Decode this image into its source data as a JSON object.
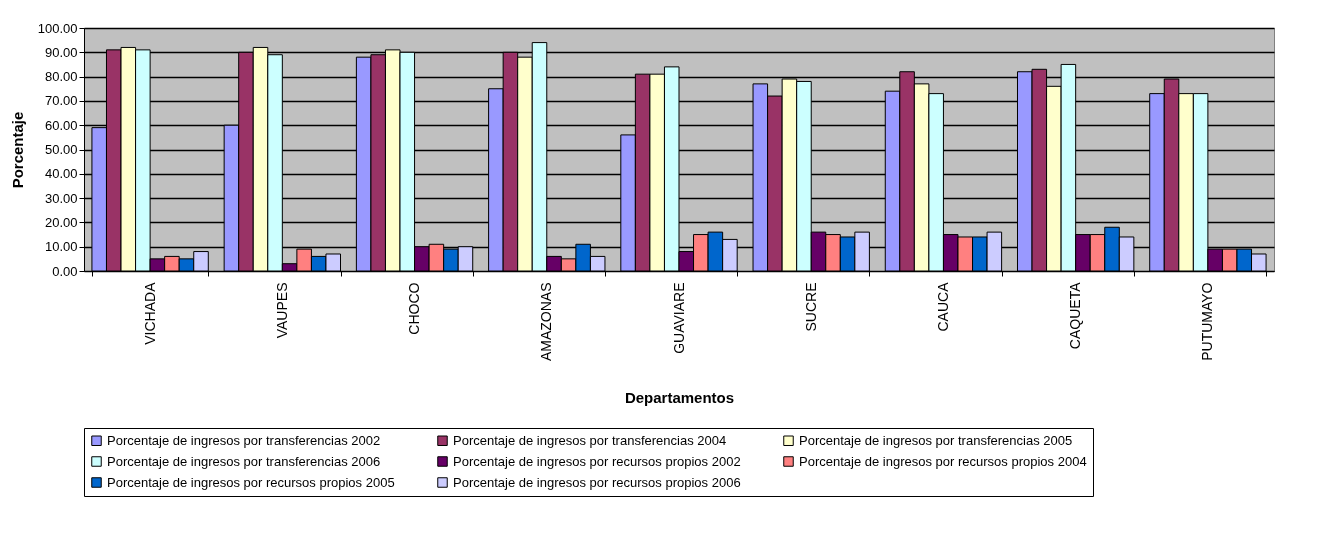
{
  "chart_data": {
    "type": "bar",
    "xlabel": "Departamentos",
    "ylabel": "Porcentaje",
    "categories": [
      "VICHADA",
      "VAUPES",
      "CHOCO",
      "AMAZONAS",
      "GUAVIARE",
      "SUCRE",
      "CAUCA",
      "CAQUETA",
      "PUTUMAYO"
    ],
    "series": [
      {
        "name": "Porcentaje de ingresos por transferencias 2002",
        "color": "#9999ff",
        "values": [
          59,
          60,
          88,
          75,
          56,
          77,
          74,
          82,
          73
        ]
      },
      {
        "name": "Porcentaje de ingresos por transferencias 2004",
        "color": "#993366",
        "values": [
          91,
          90,
          89,
          90,
          81,
          72,
          82,
          83,
          79
        ]
      },
      {
        "name": "Porcentaje de ingresos por transferencias 2005",
        "color": "#ffffcc",
        "values": [
          92,
          92,
          91,
          88,
          81,
          79,
          77,
          76,
          73
        ]
      },
      {
        "name": "Porcentaje de ingresos por transferencias 2006",
        "color": "#ccffff",
        "values": [
          91,
          89,
          90,
          94,
          84,
          78,
          73,
          85,
          73
        ]
      },
      {
        "name": "Porcentaje de ingresos por recursos propios 2002",
        "color": "#660066",
        "values": [
          5,
          3,
          10,
          6,
          8,
          16,
          15,
          15,
          9
        ]
      },
      {
        "name": "Porcentaje de ingresos por recursos propios 2004",
        "color": "#ff8080",
        "values": [
          6,
          9,
          11,
          5,
          15,
          15,
          14,
          15,
          9
        ]
      },
      {
        "name": "Porcentaje de ingresos por recursos propios 2005",
        "color": "#0066cc",
        "values": [
          5,
          6,
          9,
          11,
          16,
          14,
          14,
          18,
          9
        ]
      },
      {
        "name": "Porcentaje de ingresos por recursos propios 2006",
        "color": "#ccccff",
        "values": [
          8,
          7,
          10,
          6,
          13,
          16,
          16,
          14,
          7
        ]
      }
    ],
    "ylim": [
      0,
      100
    ],
    "yticks": [
      {
        "value": 0,
        "label": "0.00"
      },
      {
        "value": 10,
        "label": "10.00"
      },
      {
        "value": 20,
        "label": "20.00"
      },
      {
        "value": 30,
        "label": "30.00"
      },
      {
        "value": 40,
        "label": "40.00"
      },
      {
        "value": 50,
        "label": "50.00"
      },
      {
        "value": 60,
        "label": "60.00"
      },
      {
        "value": 70,
        "label": "70.00"
      },
      {
        "value": 80,
        "label": "80.00"
      },
      {
        "value": 90,
        "label": "90.00"
      },
      {
        "value": 100,
        "label": "100.00"
      }
    ],
    "grid": "y",
    "legend": "bottom"
  }
}
